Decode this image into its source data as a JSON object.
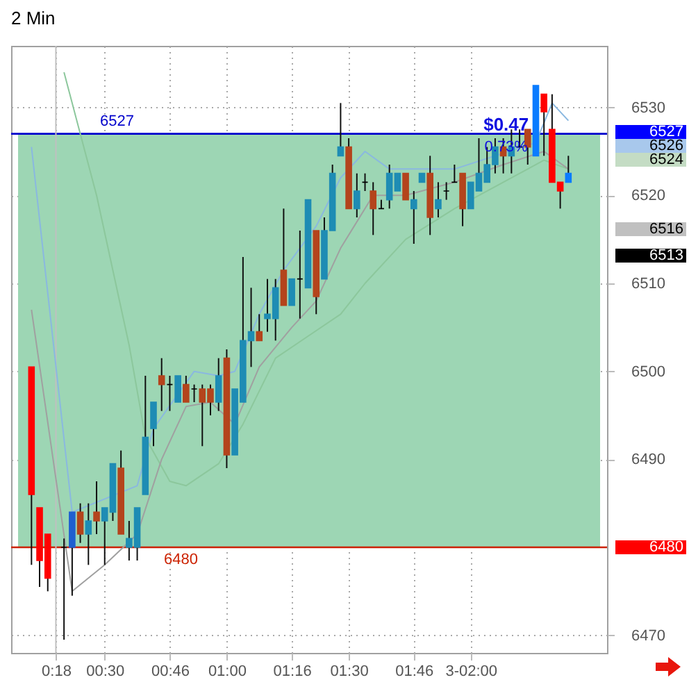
{
  "chart_data": {
    "type": "candlestick",
    "title": "2 Min",
    "x": [
      0.2,
      0.2333,
      0.2667,
      0.3333,
      0.3667,
      0.4,
      0.4333,
      0.4667,
      0.5,
      0.5333,
      0.5667,
      0.6,
      0.6333,
      0.6667,
      0.7,
      0.7333,
      0.7667,
      0.8,
      0.8333,
      0.8667,
      0.9,
      0.9333,
      0.9667,
      1,
      1.0333,
      1.0667,
      1.1,
      1.1333,
      1.1667,
      1.2,
      1.2333,
      1.2667,
      1.3,
      1.3333,
      1.3667,
      1.4,
      1.4333,
      1.4667,
      1.5,
      1.5333,
      1.5667,
      1.6,
      1.6333,
      1.6667,
      1.7,
      1.7333,
      1.7667,
      1.8,
      1.8333,
      1.8667,
      1.9,
      1.9333,
      1.9667,
      2,
      2.0333,
      2.0667,
      2.1,
      2.1333,
      2.1667,
      2.2,
      2.2333,
      2.2667,
      2.3,
      2.3333,
      2.3667,
      2.4
    ],
    "ohlc": [
      [
        6500.5,
        6500.5,
        6478,
        6486
      ],
      [
        6484.5,
        6484.5,
        6475.5,
        6478.5
      ],
      [
        6481.5,
        6481.5,
        6475,
        6476.5
      ],
      [
        6480,
        6481,
        6469.5,
        6480
      ],
      [
        6480,
        6484,
        6474.5,
        6484
      ],
      [
        6484,
        6485,
        6480.5,
        6481.5
      ],
      [
        6481.5,
        6485,
        6478,
        6483
      ],
      [
        6484,
        6487.5,
        6481.5,
        6483
      ],
      [
        6483,
        6484.5,
        6478,
        6484.5
      ],
      [
        6484,
        6489.5,
        6483,
        6489.5
      ],
      [
        6489,
        6491,
        6481.5,
        6481.5
      ],
      [
        6480,
        6483,
        6478.5,
        6481
      ],
      [
        6480,
        6484.5,
        6478.5,
        6484.5
      ],
      [
        6486,
        6499.5,
        6486,
        6492.5
      ],
      [
        6493.5,
        6496.5,
        6491.5,
        6496.5
      ],
      [
        6499.5,
        6501.5,
        6495.5,
        6498.5
      ],
      [
        6498.5,
        6499.5,
        6495.5,
        6498.5
      ],
      [
        6496.5,
        6499.5,
        6496.5,
        6499.5
      ],
      [
        6498.5,
        6499.5,
        6496.5,
        6496.5
      ],
      [
        6498,
        6498.5,
        6496.5,
        6498
      ],
      [
        6498,
        6498.5,
        6491.5,
        6496.5
      ],
      [
        6498,
        6498.5,
        6495,
        6496.5
      ],
      [
        6496.5,
        6501.5,
        6495.5,
        6499.5
      ],
      [
        6501.5,
        6502.5,
        6489,
        6490.5
      ],
      [
        6490.5,
        6498,
        6490.5,
        6498
      ],
      [
        6496.5,
        6513,
        6496.5,
        6503.5
      ],
      [
        6503.5,
        6509.5,
        6500.5,
        6504.5
      ],
      [
        6504.5,
        6506.5,
        6503.5,
        6503.5
      ],
      [
        6506,
        6510.5,
        6504.5,
        6506.5
      ],
      [
        6506,
        6510.5,
        6503.5,
        6509.5
      ],
      [
        6511.5,
        6518.5,
        6507.5,
        6507.5
      ],
      [
        6507.5,
        6510.5,
        6507.5,
        6510.5
      ],
      [
        6510.5,
        6516,
        6506,
        6510.5
      ],
      [
        6509.5,
        6519.5,
        6509.5,
        6519.5
      ],
      [
        6516,
        6516,
        6506.5,
        6508.5
      ],
      [
        6510.5,
        6517.5,
        6510.5,
        6516
      ],
      [
        6516,
        6523.5,
        6516,
        6522.5
      ],
      [
        6524.5,
        6530.5,
        6524.5,
        6525.5
      ],
      [
        6525.5,
        6526.5,
        6518.5,
        6518.5
      ],
      [
        6518.5,
        6522.5,
        6517.5,
        6520.5
      ],
      [
        6521.5,
        6522.5,
        6520.5,
        6521.5
      ],
      [
        6520.5,
        6521.5,
        6515.5,
        6518.5
      ],
      [
        6518.5,
        6519.5,
        6518.5,
        6518.5
      ],
      [
        6519.5,
        6523.5,
        6518.5,
        6522.5
      ],
      [
        6520.5,
        6522.5,
        6520.5,
        6522.5
      ],
      [
        6522.5,
        6522.5,
        6519.5,
        6519.5
      ],
      [
        6518.5,
        6520.5,
        6514.5,
        6519.5
      ],
      [
        6521.5,
        6522.5,
        6521.5,
        6522.5
      ],
      [
        6522.5,
        6524.5,
        6515.5,
        6517.5
      ],
      [
        6518.5,
        6521.5,
        6517.5,
        6519.5
      ],
      [
        6520.5,
        6521.5,
        6519.5,
        6520.5
      ],
      [
        6521.5,
        6523.5,
        6521.5,
        6521.5
      ],
      [
        6522.5,
        6522.5,
        6516.5,
        6518.5
      ],
      [
        6518.5,
        6521.5,
        6518.5,
        6521.5
      ],
      [
        6520.5,
        6526.5,
        6520.5,
        6522.5
      ],
      [
        6521.5,
        6525.5,
        6521.5,
        6523.5
      ],
      [
        6523.5,
        6526.5,
        6522.5,
        6525.5
      ],
      [
        6525.5,
        6526.5,
        6522.5,
        6524.5
      ],
      [
        6524.5,
        6527.5,
        6522.5,
        6525.5
      ],
      [
        6525.5,
        6527.5,
        6525.5,
        6525.5
      ],
      [
        6527.5,
        6527.5,
        6523.5,
        6525.5
      ],
      [
        6524.5,
        6532.5,
        6524.5,
        6532.5
      ],
      [
        6531.5,
        6531.5,
        6524.5,
        6529.5
      ],
      [
        6527.5,
        6531.5,
        6521.5,
        6521.5
      ],
      [
        6521.5,
        6521.5,
        6518.5,
        6520.5
      ],
      [
        6521.5,
        6524.5,
        6521.5,
        6522.5
      ]
    ],
    "colors": [
      "#ff0000",
      "#ff0000",
      "#ff0000",
      "#000000",
      "#1f5fd0",
      "#b4441c",
      "#1e8cb4",
      "#b4441c",
      "#1e8cb4",
      "#1e8cb4",
      "#b4441c",
      "#1e8cb4",
      "#1e8cb4",
      "#1e8cb4",
      "#1e8cb4",
      "#b4441c",
      "#000000",
      "#1e8cb4",
      "#b4441c",
      "#000000",
      "#b4441c",
      "#b4441c",
      "#1e8cb4",
      "#b4441c",
      "#1e8cb4",
      "#1e8cb4",
      "#1e8cb4",
      "#b4441c",
      "#1e8cb4",
      "#1e8cb4",
      "#b4441c",
      "#1e8cb4",
      "#000000",
      "#1e8cb4",
      "#b4441c",
      "#1e8cb4",
      "#1e8cb4",
      "#1e8cb4",
      "#b4441c",
      "#1e8cb4",
      "#000000",
      "#b4441c",
      "#000000",
      "#1e8cb4",
      "#1e8cb4",
      "#b4441c",
      "#1e8cb4",
      "#1e8cb4",
      "#b4441c",
      "#1e8cb4",
      "#000000",
      "#000000",
      "#b4441c",
      "#1e8cb4",
      "#1e8cb4",
      "#1e8cb4",
      "#1e8cb4",
      "#b4441c",
      "#1e8cb4",
      "#000000",
      "#b4441c",
      "#0a7cff",
      "#ff0000",
      "#ff0000",
      "#ff0000",
      "#0a7cff"
    ],
    "series": [
      {
        "type": "line",
        "color": "#8ab8e0",
        "x": [
          0.2,
          0.3667,
          0.6333,
          0.7,
          0.8667,
          0.9667,
          1.0333,
          1.1333,
          1.2333,
          1.3667,
          1.4667,
          1.5667,
          1.6667,
          1.9333,
          2.1,
          2.2667,
          2.3333,
          2.4
        ],
        "values": [
          6525.5,
          6484,
          6487,
          6493.5,
          6500,
          6499.5,
          6500,
          6506.5,
          6511.5,
          6516.5,
          6522,
          6525,
          6523,
          6523,
          6524.5,
          6526,
          6530.5,
          6528.5
        ]
      },
      {
        "type": "line",
        "color": "#8cc79c",
        "x": [
          0.3333,
          0.4667,
          0.6,
          0.6667,
          0.7667,
          0.8333,
          0.9667,
          1.0667,
          1.2,
          1.3333,
          1.4667,
          1.5667,
          1.7333,
          1.9333,
          2.1333,
          2.3,
          2.4
        ],
        "values": [
          6534,
          6520,
          6503,
          6492.5,
          6487.5,
          6487,
          6489.5,
          6494,
          6501.5,
          6504,
          6506.5,
          6510,
          6515,
          6518.5,
          6521.5,
          6524,
          6523
        ]
      },
      {
        "type": "line",
        "color": "#a0a0a0",
        "x": [
          0.2,
          0.3667,
          0.5,
          0.6333,
          0.7333,
          0.8333,
          0.9333,
          1.0333,
          1.1333,
          1.2667,
          1.3667,
          1.4667,
          1.6,
          1.7333,
          1.9333,
          2.1333,
          2.3,
          2.4
        ],
        "values": [
          6507,
          6475,
          6478,
          6481.5,
          6490,
          6496,
          6496.5,
          6494,
          6500.5,
          6505,
          6508,
          6514,
          6520,
          6520,
          6521.5,
          6523.5,
          6525,
          6523
        ]
      }
    ],
    "xlim": [
      0.145,
      2.53
    ],
    "xticks": [
      {
        "value": 0.3,
        "label": "0:18"
      },
      {
        "value": 0.5,
        "label": "00:30"
      },
      {
        "value": 0.7667,
        "label": "00:46"
      },
      {
        "value": 1,
        "label": "01:00"
      },
      {
        "value": 1.2667,
        "label": "01:16"
      },
      {
        "value": 1.5,
        "label": "01:30"
      },
      {
        "value": 1.7667,
        "label": "01:46"
      },
      {
        "value": 2,
        "label": "3-02:00"
      }
    ],
    "ylim": [
      6468,
      6537
    ],
    "yticks": [
      6470,
      6490,
      6500,
      6510,
      6520,
      6530
    ],
    "grid": true,
    "bands": [
      {
        "axis": "y",
        "from": 6480,
        "to": 6527,
        "color": "#9dd6b4"
      }
    ],
    "ref_lines": [
      {
        "axis": "y",
        "value": 6527,
        "label": "6527",
        "color": "#0000cc"
      },
      {
        "axis": "y",
        "value": 6480,
        "label": "6480",
        "color": "#cc2200"
      },
      {
        "axis": "x",
        "value": 0.3,
        "color": "#c0c0c0"
      }
    ],
    "annotations": [
      {
        "text": "$0.47",
        "x": 2.145,
        "y": 6528
      },
      {
        "text": "0.73%",
        "x": 2.145,
        "y": 6525.5
      },
      "6527",
      "6526",
      "6524",
      "6516",
      "6513",
      "6480"
    ]
  }
}
